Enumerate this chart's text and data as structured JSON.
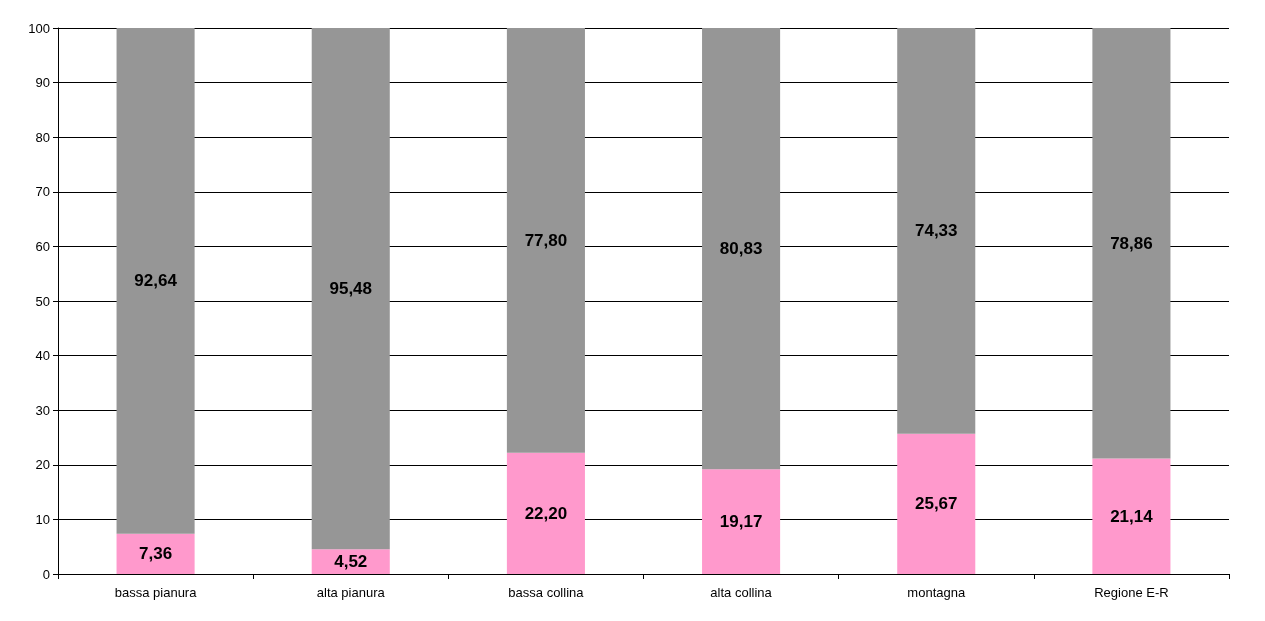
{
  "chart_data": {
    "type": "bar",
    "stacked": true,
    "categories": [
      "bassa pianura",
      "alta pianura",
      "bassa collina",
      "alta collina",
      "montagna",
      "Regione E-R"
    ],
    "series": [
      {
        "color": "#ff99cc",
        "values": [
          7.36,
          4.52,
          22.2,
          19.17,
          25.67,
          21.14
        ],
        "value_labels": [
          "7,36",
          "4,52",
          "22,20",
          "19,17",
          "25,67",
          "21,14"
        ]
      },
      {
        "color": "#969696",
        "values": [
          92.64,
          95.48,
          77.8,
          80.83,
          74.33,
          78.86
        ],
        "value_labels": [
          "92,64",
          "95,48",
          "77,80",
          "80,83",
          "74,33",
          "78,86"
        ]
      }
    ],
    "ylim": [
      0,
      100
    ],
    "yticks": [
      0,
      10,
      20,
      30,
      40,
      50,
      60,
      70,
      80,
      90,
      100
    ],
    "grid": "y"
  }
}
